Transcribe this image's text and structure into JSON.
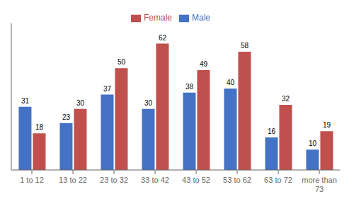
{
  "chart_data": {
    "type": "bar",
    "categories": [
      "1 to 12",
      "13 to 22",
      "23 to 32",
      "33 to 42",
      "43 to 52",
      "53 to 62",
      "63 to 72",
      "more than\n73"
    ],
    "series": [
      {
        "name": "Male",
        "color": "#4472C4",
        "values": [
          31,
          23,
          37,
          30,
          38,
          40,
          16,
          10
        ]
      },
      {
        "name": "Female",
        "color": "#C0504D",
        "values": [
          18,
          30,
          50,
          62,
          49,
          58,
          32,
          19
        ]
      }
    ],
    "ylim": [
      0,
      72
    ],
    "data_labels": true,
    "tick_labels": "x",
    "legend": "top",
    "grid": false
  }
}
